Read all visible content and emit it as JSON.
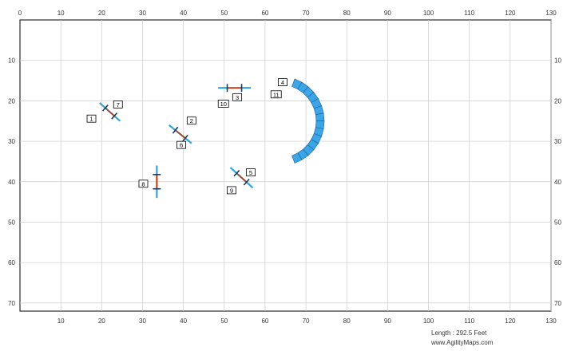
{
  "map": {
    "x_ticks": [
      0,
      10,
      20,
      30,
      40,
      50,
      60,
      70,
      80,
      90,
      100,
      110,
      120,
      130
    ],
    "y_ticks": [
      10,
      20,
      30,
      40,
      50,
      60,
      70
    ],
    "x_range": [
      0,
      130
    ],
    "y_range": [
      0,
      72
    ],
    "colors": {
      "grid": "#cccccc",
      "border": "#000000",
      "bar": "#2ca5e0",
      "rail": "#cc3300",
      "tunnel": "#3aa6e8",
      "tunnel_edge": "#1a5f99"
    }
  },
  "obstacles": [
    {
      "id": "jump-1",
      "kind": "jump",
      "from": [
        19.5,
        20.5
      ],
      "to": [
        24.5,
        25.0
      ],
      "number": "1",
      "label_at": [
        17.5,
        24.5
      ]
    },
    {
      "id": "jump-7",
      "kind": "jump",
      "from": [
        19.5,
        20.5
      ],
      "to": [
        24.5,
        25.0
      ],
      "number": "7",
      "label_at": [
        24.0,
        21.0
      ]
    },
    {
      "id": "jump-2",
      "kind": "jump",
      "from": [
        36.5,
        26.0
      ],
      "to": [
        42.0,
        30.5
      ],
      "number": "2",
      "label_at": [
        42.0,
        25.0
      ]
    },
    {
      "id": "jump-6",
      "kind": "jump",
      "from": [
        36.5,
        26.0
      ],
      "to": [
        42.0,
        30.5
      ],
      "number": "6",
      "label_at": [
        39.5,
        31.0
      ]
    },
    {
      "id": "jump-3",
      "kind": "jump",
      "from": [
        48.5,
        16.8
      ],
      "to": [
        56.5,
        16.8
      ],
      "number": "3",
      "label_at": [
        53.2,
        19.2
      ]
    },
    {
      "id": "jump-10",
      "kind": "jump",
      "from": [
        48.5,
        16.8
      ],
      "to": [
        56.5,
        16.8
      ],
      "number": "10",
      "label_at": [
        49.8,
        20.8
      ]
    },
    {
      "id": "jump-5",
      "kind": "jump",
      "from": [
        51.5,
        36.5
      ],
      "to": [
        57.0,
        41.5
      ],
      "number": "5",
      "label_at": [
        56.5,
        37.8
      ]
    },
    {
      "id": "jump-9",
      "kind": "jump",
      "from": [
        51.5,
        36.5
      ],
      "to": [
        57.0,
        41.5
      ],
      "number": "9",
      "label_at": [
        51.8,
        42.2
      ]
    },
    {
      "id": "jump-8",
      "kind": "jump",
      "from": [
        33.5,
        36.0
      ],
      "to": [
        33.5,
        44.0
      ],
      "number": "8",
      "label_at": [
        30.2,
        40.6
      ]
    },
    {
      "id": "tunnel-4",
      "kind": "tunnel",
      "number": "4",
      "label_at": [
        64.3,
        15.5
      ],
      "center": [
        63.5,
        25.0
      ],
      "radius": 10.0,
      "arc_from": -45,
      "arc_to": 45
    },
    {
      "id": "tunnel-11",
      "kind": "tunnel",
      "number": "11",
      "label_at": [
        62.7,
        18.5
      ]
    }
  ],
  "footer": {
    "length": "Length : 292.5 Feet",
    "site": "www.AgilityMaps.com"
  }
}
